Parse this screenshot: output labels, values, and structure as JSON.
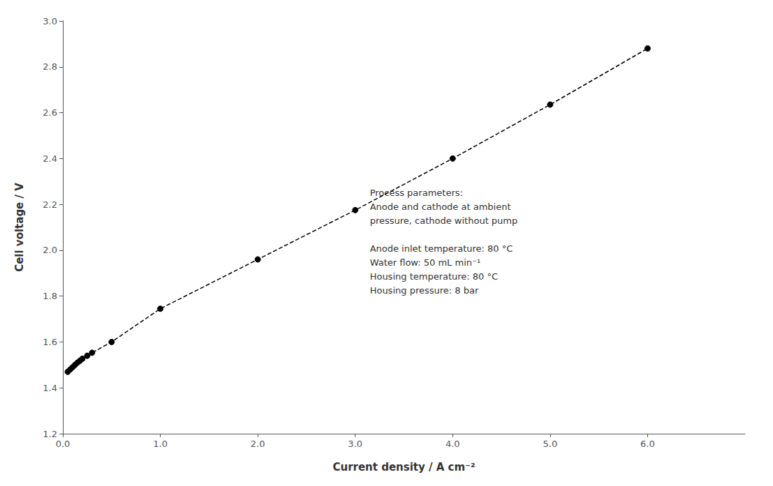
{
  "chart_data": {
    "type": "line",
    "x": [
      0.05,
      0.075,
      0.1,
      0.125,
      0.15,
      0.175,
      0.2,
      0.25,
      0.3,
      0.5,
      1.0,
      2.0,
      3.0,
      4.0,
      5.0,
      6.0
    ],
    "values": [
      1.47,
      1.48,
      1.49,
      1.5,
      1.51,
      1.518,
      1.527,
      1.54,
      1.553,
      1.6,
      1.745,
      1.96,
      2.175,
      2.4,
      2.635,
      2.88
    ],
    "xlabel": "Current density / A cm⁻²",
    "ylabel": "Cell voltage / V",
    "xlim": [
      0.0,
      7.0
    ],
    "ylim": [
      1.2,
      3.0
    ],
    "xticks": [
      {
        "value": 0,
        "label": "0.0"
      },
      {
        "value": 1,
        "label": "1.0"
      },
      {
        "value": 2,
        "label": "2.0"
      },
      {
        "value": 3,
        "label": "3.0"
      },
      {
        "value": 4,
        "label": "4.0"
      },
      {
        "value": 5,
        "label": "5.0"
      },
      {
        "value": 6,
        "label": "6.0"
      }
    ],
    "yticks": [
      1.2,
      1.4,
      1.6,
      1.8,
      {
        "value": 2,
        "label": "2.0"
      },
      2.2,
      2.4,
      2.6,
      2.8,
      {
        "value": 3,
        "label": "3.0"
      }
    ],
    "annotations": [
      {
        "text": "Process parameters:\nAnode and cathode at ambient\npressure, cathode without pump\n\nAnode inlet temperature: 80 °C\nWater flow: 50 mL min⁻¹\nHousing temperature: 80 °C\nHousing pressure: 8 bar",
        "x": 3.15,
        "y": 2.28
      }
    ],
    "color": "#000000",
    "marker": "circle",
    "line_style": "dashed",
    "grid": false
  }
}
